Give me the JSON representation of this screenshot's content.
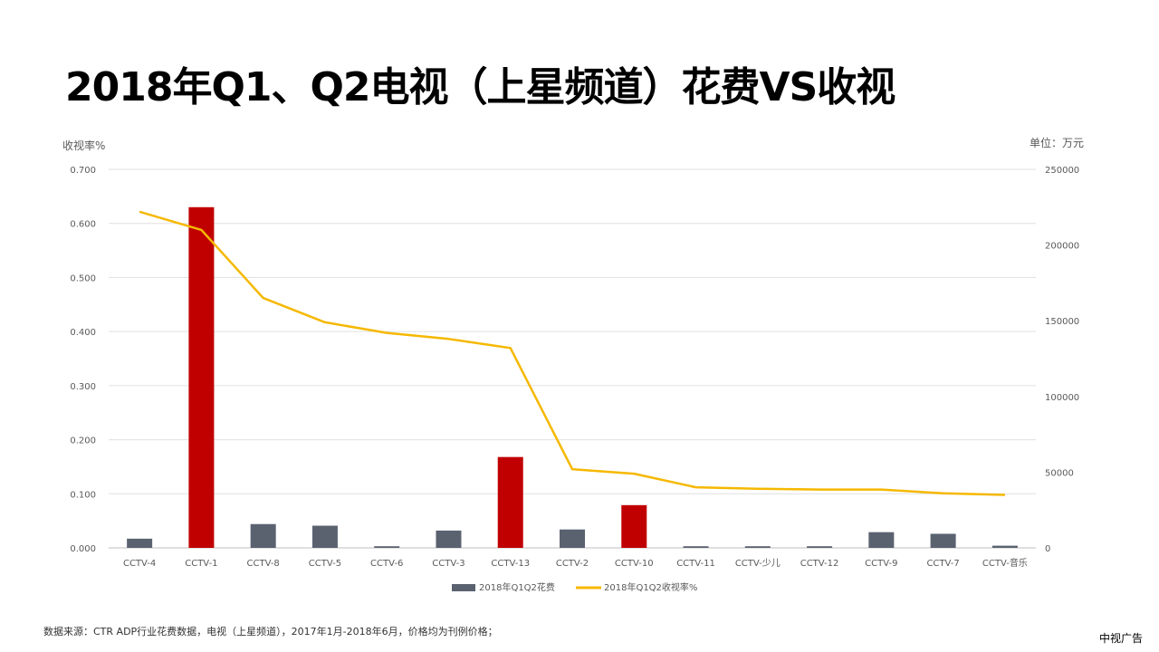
{
  "page": {
    "title": "2018年Q1、Q2电视（上星频道）花费VS收视",
    "source_note": "数据来源：CTR ADP行业花费数据，电视（上星频道），2017年1月-2018年6月，价格均为刊例价格；",
    "brand": "中视广告"
  },
  "chart_data": {
    "type": "bar",
    "categories": [
      "CCTV-4",
      "CCTV-1",
      "CCTV-8",
      "CCTV-5",
      "CCTV-6",
      "CCTV-3",
      "CCTV-13",
      "CCTV-2",
      "CCTV-10",
      "CCTV-11",
      "CCTV-少儿",
      "CCTV-12",
      "CCTV-9",
      "CCTV-7",
      "CCTV-音乐"
    ],
    "left_axis": {
      "label": "收视率%",
      "ylim": [
        0,
        0.7
      ],
      "ticks": [
        "0.000",
        "0.100",
        "0.200",
        "0.300",
        "0.400",
        "0.500",
        "0.600",
        "0.700"
      ]
    },
    "right_axis": {
      "label": "单位：万元",
      "ylim": [
        0,
        250000
      ],
      "ticks": [
        "0",
        "50000",
        "100000",
        "150000",
        "200000",
        "250000"
      ]
    },
    "series": [
      {
        "name": "2018年Q1Q2花费",
        "type": "bar",
        "axis": "left",
        "color": "#5a6270",
        "highlight_color": "#c00000",
        "highlight_indices": [
          1,
          6,
          8
        ],
        "values": [
          0.017,
          0.63,
          0.044,
          0.041,
          0.003,
          0.032,
          0.168,
          0.034,
          0.079,
          0.003,
          0.003,
          0.003,
          0.029,
          0.026,
          0.004
        ]
      },
      {
        "name": "2018年Q1Q2收视率%",
        "type": "line",
        "axis": "right",
        "color": "#f5b800",
        "values": [
          222000,
          210000,
          165000,
          149000,
          142000,
          138000,
          132000,
          52000,
          49000,
          40000,
          39000,
          38500,
          38500,
          36000,
          35000
        ]
      }
    ],
    "grid": true,
    "legend_position": "bottom"
  }
}
